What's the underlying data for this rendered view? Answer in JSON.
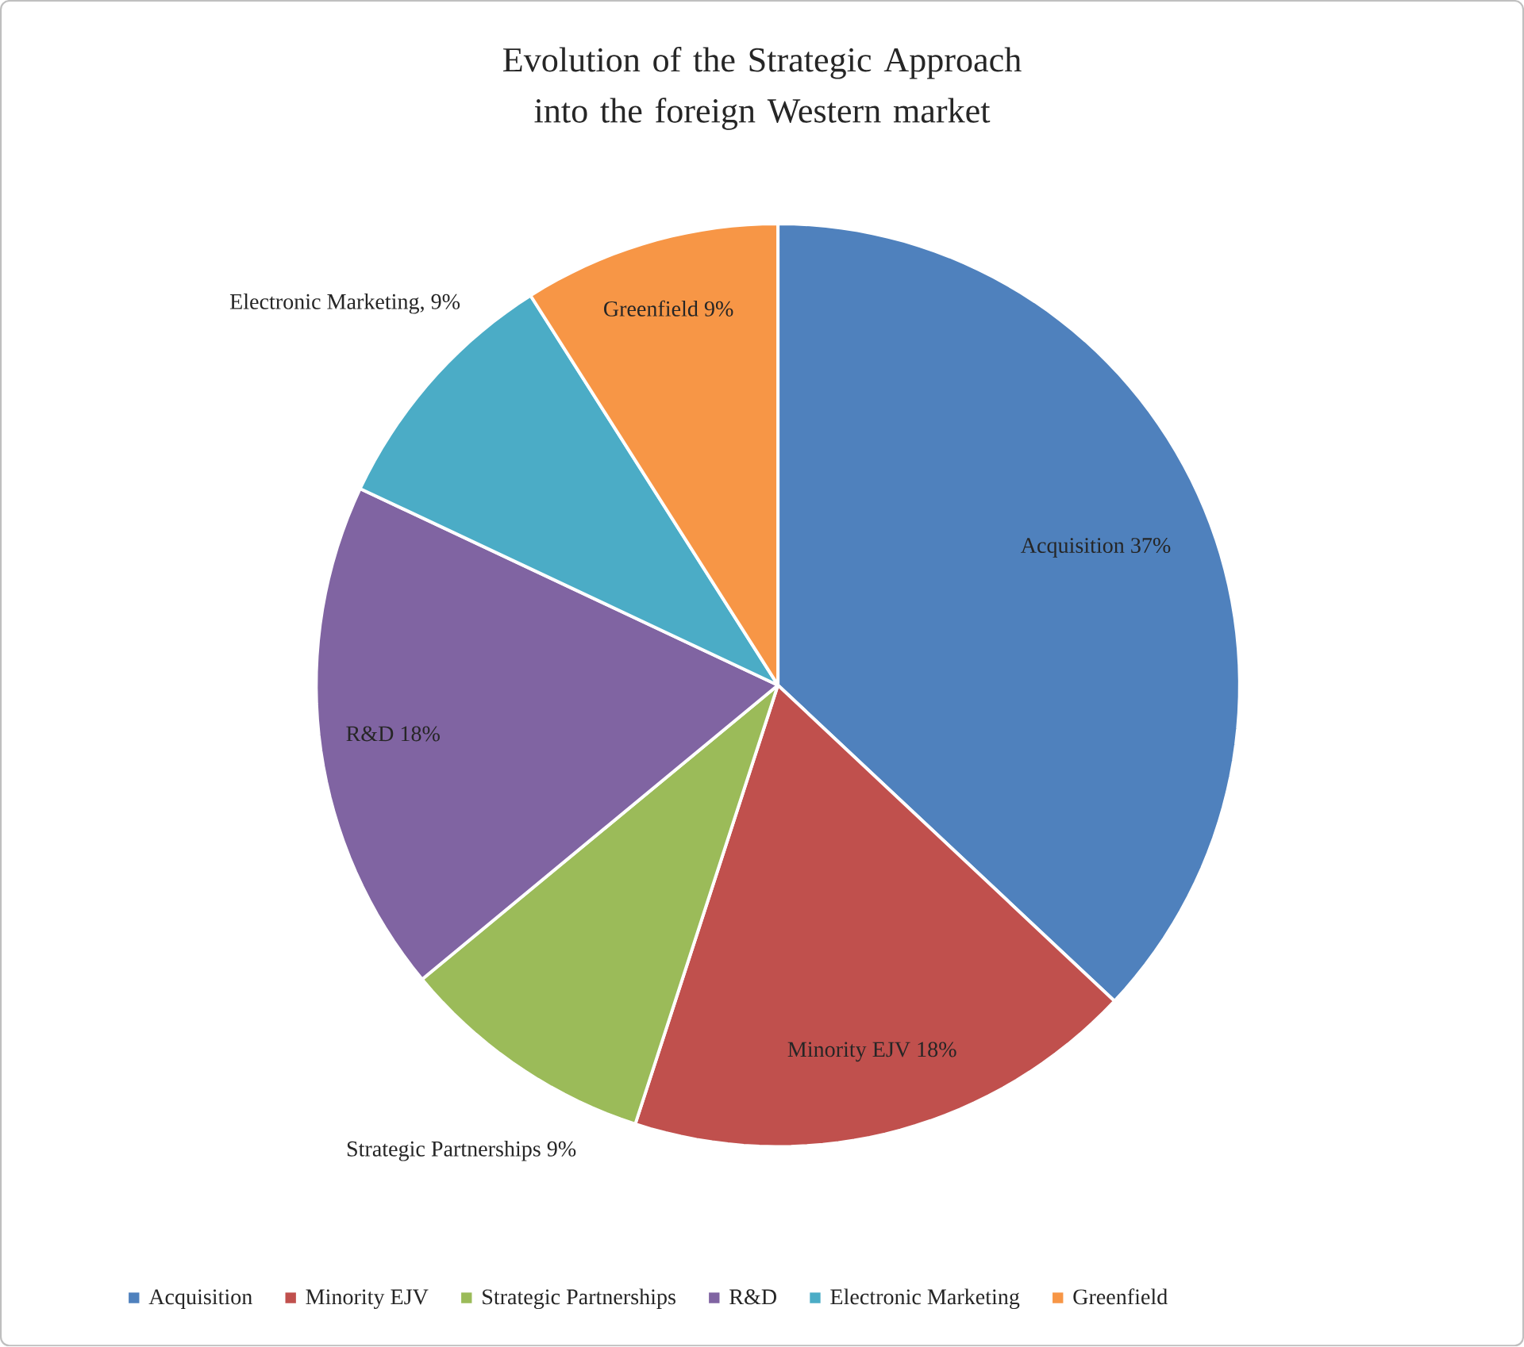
{
  "chart_data": {
    "type": "pie",
    "title": "Evolution of the Strategic Approach into the foreign Western market",
    "categories": [
      "Acquisition",
      "Minority EJV",
      "Strategic Partnerships",
      "R&D",
      "Electronic Marketing",
      "Greenfield"
    ],
    "values": [
      37,
      18,
      9,
      18,
      9,
      9
    ],
    "colors": [
      "#4f81bd",
      "#c0504d",
      "#9bbb59",
      "#8064a2",
      "#4bacc6",
      "#f79646"
    ],
    "value_labels": [
      "Acquisition 37%",
      "Minority EJV  18%",
      "Strategic Partnerships  9%",
      "R&D 18%",
      "Electronic Marketing, 9%",
      "Greenfield 9%"
    ],
    "legend": "bottom"
  }
}
